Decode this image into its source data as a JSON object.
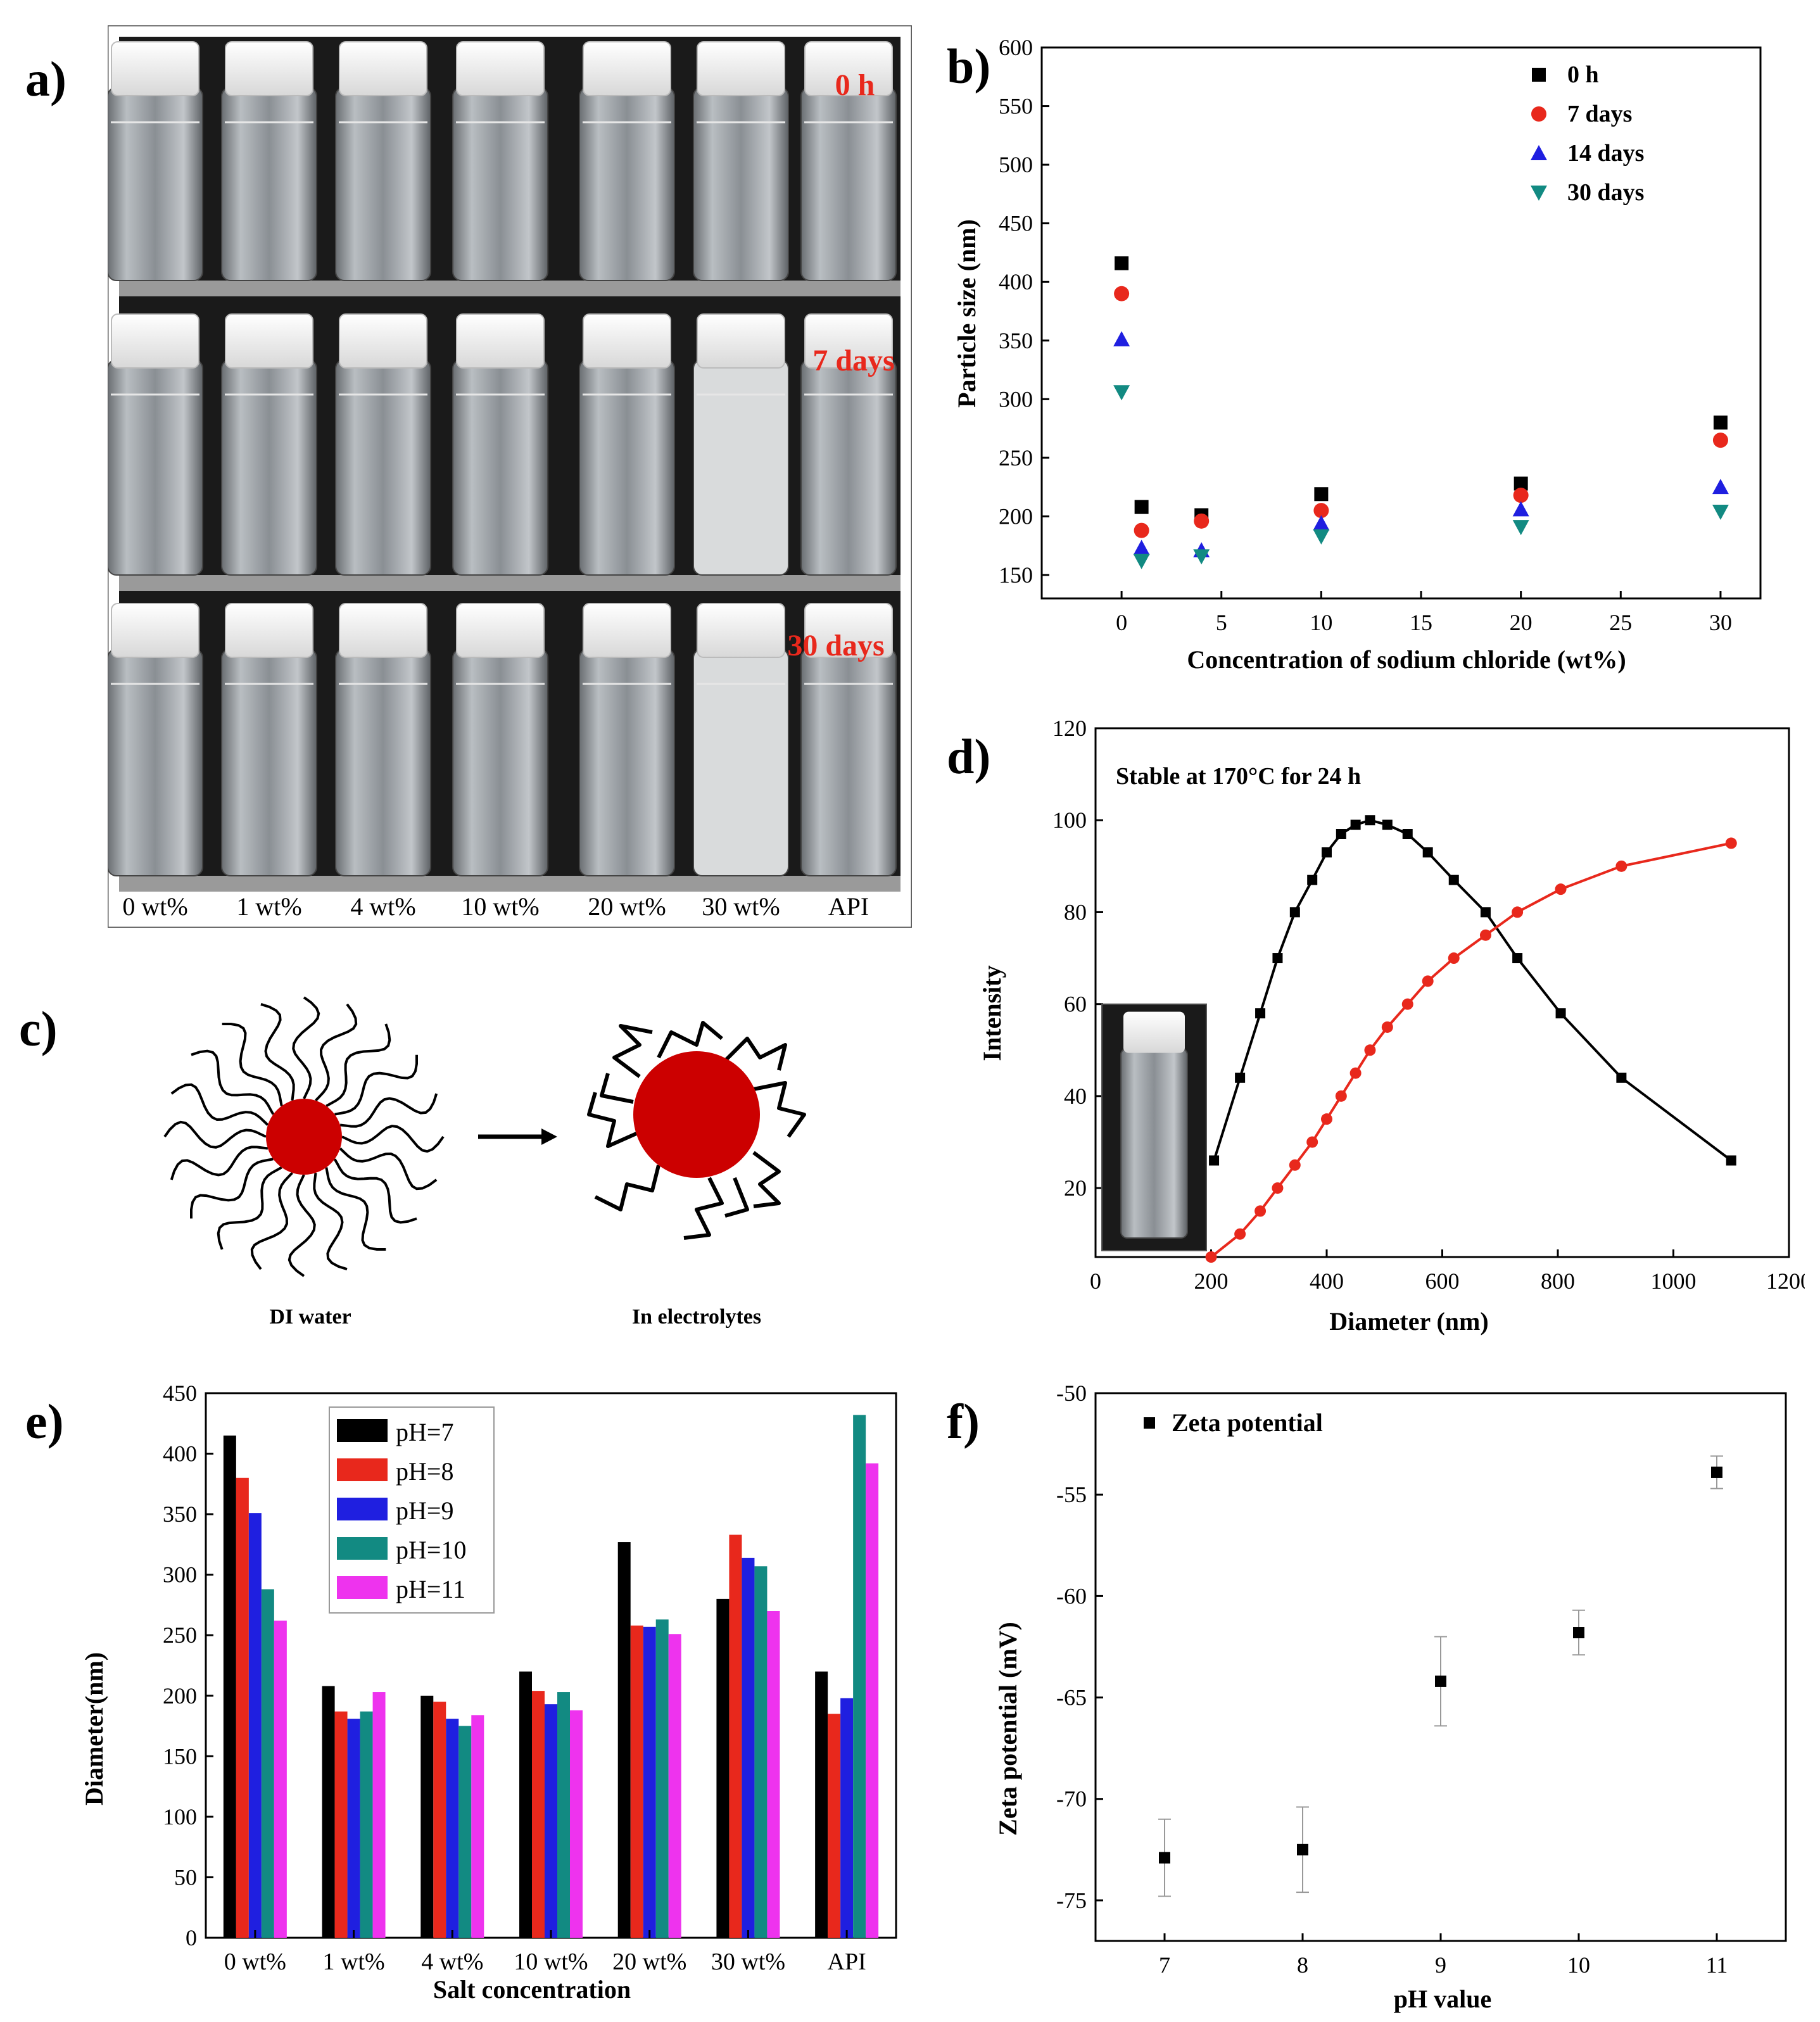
{
  "panel_labels": {
    "a": "a)",
    "b": "b)",
    "c": "c)",
    "d": "d)",
    "e": "e)",
    "f": "f)"
  },
  "colors": {
    "black": "#000000",
    "red": "#e8281c",
    "blue": "#1f1fe0",
    "teal": "#128a82",
    "magenta": "#ee33ee",
    "dark_red": "#cc0000"
  },
  "photo_a": {
    "row_labels": [
      "0 h",
      "7 days",
      "30 days"
    ],
    "vial_labels": [
      "0 wt%",
      "1 wt%",
      "4 wt%",
      "10 wt%",
      "20 wt%",
      "30 wt%",
      "API"
    ]
  },
  "schematic_c": {
    "left_caption": "DI water",
    "right_caption": "In electrolytes"
  },
  "chart_data": [
    {
      "id": "b",
      "type": "scatter",
      "title": "",
      "xlabel": "Concentration of sodium chloride (wt%)",
      "ylabel": "Particle size (nm)",
      "xlim": [
        -4,
        32
      ],
      "ylim": [
        130,
        600
      ],
      "xticks": [
        0,
        5,
        10,
        15,
        20,
        25,
        30
      ],
      "yticks": [
        150,
        200,
        250,
        300,
        350,
        400,
        450,
        500,
        550,
        600
      ],
      "legend_position": "top-right",
      "series": [
        {
          "name": "0 h",
          "marker": "square",
          "color": "#000000",
          "x": [
            0,
            1,
            4,
            10,
            20,
            30
          ],
          "y": [
            416,
            208,
            201,
            219,
            228,
            280
          ]
        },
        {
          "name": "7 days",
          "marker": "circle",
          "color": "#e8281c",
          "x": [
            0,
            1,
            4,
            10,
            20,
            30
          ],
          "y": [
            390,
            188,
            196,
            205,
            218,
            265
          ]
        },
        {
          "name": "14 days",
          "marker": "triangle-up",
          "color": "#1f1fe0",
          "x": [
            0,
            1,
            4,
            10,
            20,
            30
          ],
          "y": [
            351,
            173,
            171,
            194,
            206,
            225
          ]
        },
        {
          "name": "30 days",
          "marker": "triangle-down",
          "color": "#128a82",
          "x": [
            0,
            1,
            4,
            10,
            20,
            30
          ],
          "y": [
            306,
            162,
            166,
            183,
            191,
            204
          ]
        }
      ]
    },
    {
      "id": "d",
      "type": "line",
      "title": "",
      "annotation": "Stable at 170°C for 24 h",
      "xlabel": "Diameter (nm)",
      "ylabel": "Intensity",
      "xlim": [
        0,
        1200
      ],
      "ylim": [
        5,
        120
      ],
      "xticks": [
        0,
        200,
        400,
        600,
        800,
        1000,
        1200
      ],
      "yticks": [
        20,
        40,
        60,
        80,
        100,
        120
      ],
      "series": [
        {
          "name": "distribution",
          "color": "#000000",
          "marker": "square",
          "x": [
            205,
            250,
            285,
            315,
            345,
            375,
            400,
            425,
            450,
            475,
            505,
            540,
            575,
            620,
            675,
            730,
            805,
            910,
            1100
          ],
          "y": [
            26,
            44,
            58,
            70,
            80,
            87,
            93,
            97,
            99,
            100,
            99,
            97,
            93,
            87,
            80,
            70,
            58,
            44,
            26
          ]
        },
        {
          "name": "cumulative",
          "color": "#e8281c",
          "marker": "circle",
          "x": [
            200,
            250,
            285,
            315,
            345,
            375,
            400,
            425,
            450,
            475,
            505,
            540,
            575,
            620,
            675,
            730,
            805,
            910,
            1100
          ],
          "y": [
            5,
            10,
            15,
            20,
            25,
            30,
            35,
            40,
            45,
            50,
            55,
            60,
            65,
            70,
            75,
            80,
            85,
            90,
            95
          ]
        }
      ]
    },
    {
      "id": "e",
      "type": "bar",
      "title": "",
      "xlabel": "Salt concentration",
      "ylabel": "Diameter(nm)",
      "ylim": [
        0,
        450
      ],
      "yticks": [
        0,
        50,
        100,
        150,
        200,
        250,
        300,
        350,
        400,
        450
      ],
      "legend_position": "top-left",
      "categories": [
        "0 wt%",
        "1 wt%",
        "4 wt%",
        "10 wt%",
        "20 wt%",
        "30 wt%",
        "API"
      ],
      "series": [
        {
          "name": "pH=7",
          "color": "#000000",
          "values": [
            415,
            208,
            200,
            220,
            327,
            280,
            220
          ]
        },
        {
          "name": "pH=8",
          "color": "#e8281c",
          "values": [
            380,
            187,
            195,
            204,
            258,
            333,
            185
          ]
        },
        {
          "name": "pH=9",
          "color": "#1f1fe0",
          "values": [
            351,
            181,
            181,
            193,
            257,
            314,
            198
          ]
        },
        {
          "name": "pH=10",
          "color": "#128a82",
          "values": [
            288,
            187,
            175,
            203,
            263,
            307,
            432
          ]
        },
        {
          "name": "pH=11",
          "color": "#ee33ee",
          "values": [
            262,
            203,
            184,
            188,
            251,
            270,
            392
          ]
        }
      ]
    },
    {
      "id": "f",
      "type": "scatter",
      "title": "",
      "xlabel": "pH value",
      "ylabel": "Zeta potential (mV)",
      "xlim": [
        6.5,
        11.5
      ],
      "ylim": [
        -77,
        -50
      ],
      "xticks": [
        7,
        8,
        9,
        10,
        11
      ],
      "yticks": [
        -75,
        -70,
        -65,
        -60,
        -55,
        -50
      ],
      "legend_position": "top-left",
      "series": [
        {
          "name": "Zeta potential",
          "marker": "square",
          "color": "#000000",
          "x": [
            7,
            8,
            9,
            10,
            11
          ],
          "y": [
            -72.9,
            -72.5,
            -64.2,
            -61.8,
            -53.9
          ],
          "err": [
            1.9,
            2.1,
            2.2,
            1.1,
            0.8
          ]
        }
      ]
    }
  ]
}
